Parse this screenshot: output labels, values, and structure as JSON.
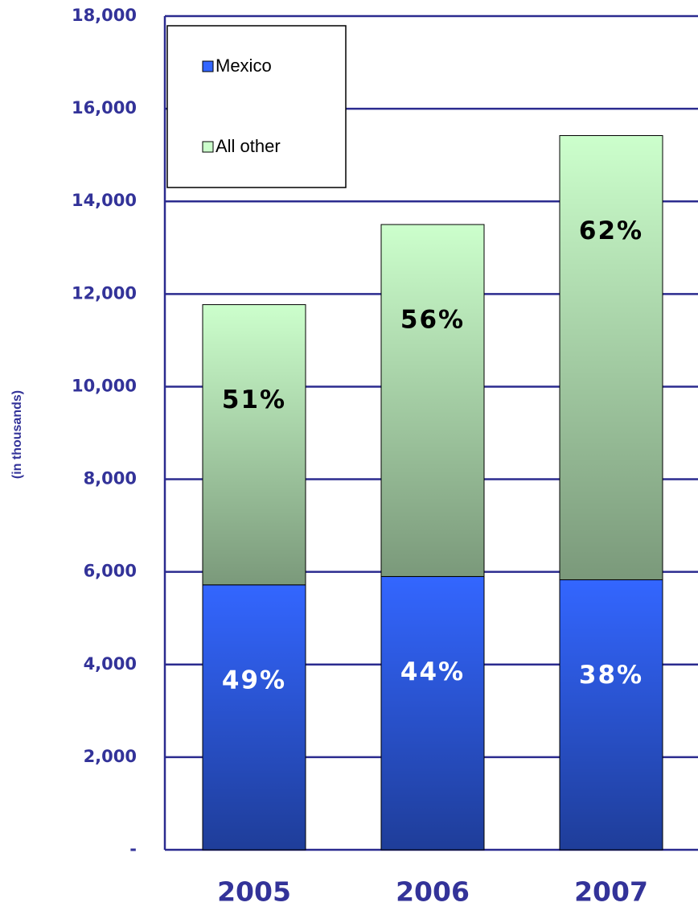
{
  "chart_data": {
    "type": "stacked_bar",
    "ylabel": "(in thousands)",
    "categories": [
      "2005",
      "2006",
      "2007"
    ],
    "series": [
      {
        "name": "Mexico",
        "color": "#3366ff",
        "values": [
          5720,
          5900,
          5830
        ],
        "labels": [
          "49%",
          "44%",
          "38%"
        ],
        "label_color": "#ffffff"
      },
      {
        "name": "All other",
        "color": "#ccffcc",
        "values": [
          6050,
          7600,
          9590
        ],
        "labels": [
          "51%",
          "56%",
          "62%"
        ],
        "label_color": "#000000"
      }
    ],
    "ylim": [
      0,
      18000
    ],
    "yticks": [
      {
        "value": 0,
        "label": "-"
      },
      {
        "value": 2000,
        "label": "2,000"
      },
      {
        "value": 4000,
        "label": "4,000"
      },
      {
        "value": 6000,
        "label": "6,000"
      },
      {
        "value": 8000,
        "label": "8,000"
      },
      {
        "value": 10000,
        "label": "10,000"
      },
      {
        "value": 12000,
        "label": "12,000"
      },
      {
        "value": 14000,
        "label": "14,000"
      },
      {
        "value": 16000,
        "label": "16,000"
      },
      {
        "value": 18000,
        "label": "18,000"
      }
    ],
    "grid": true,
    "legend": "top-left"
  }
}
